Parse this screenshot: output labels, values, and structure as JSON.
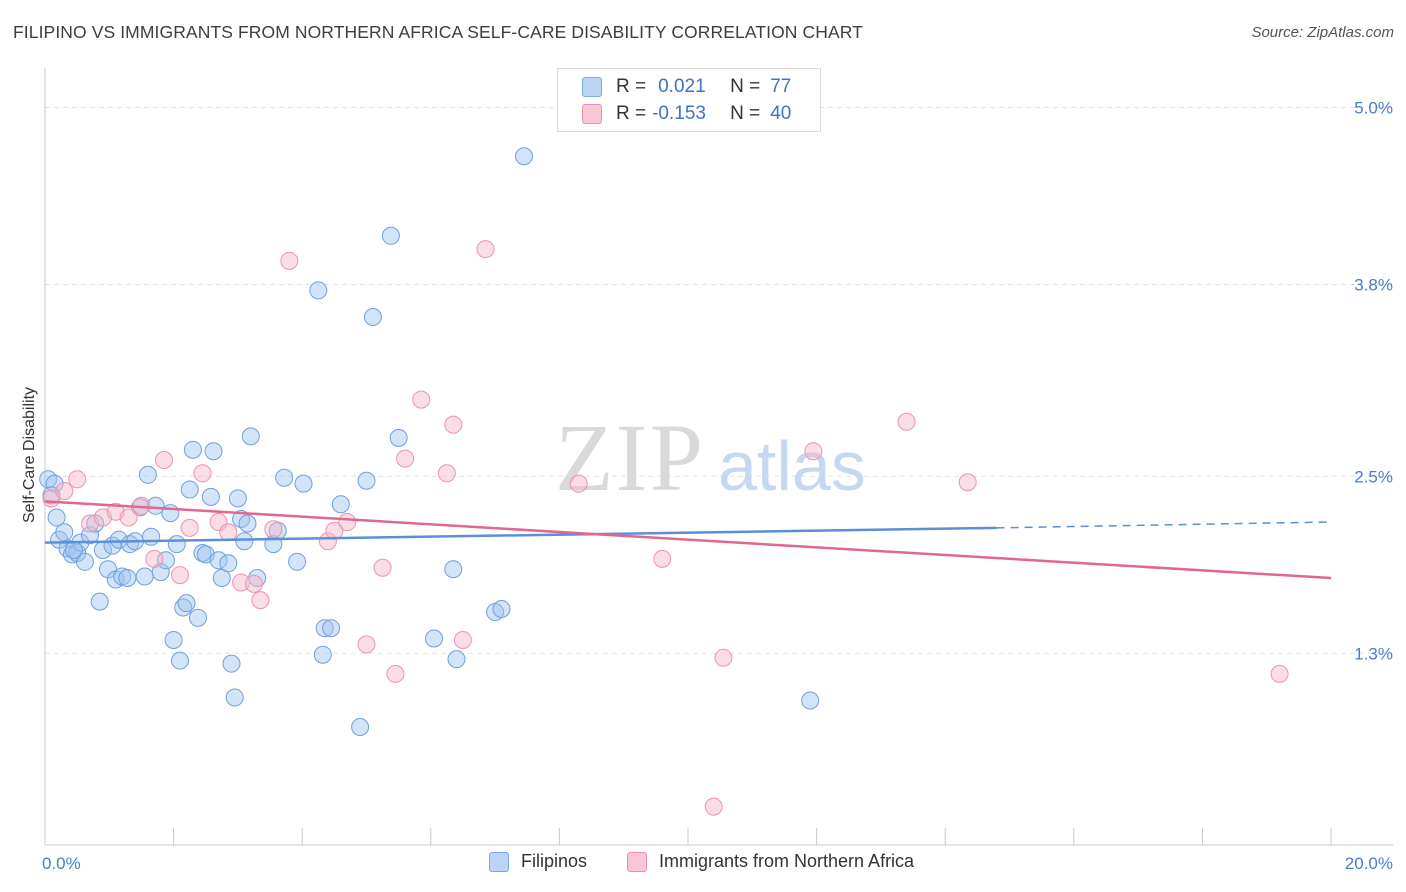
{
  "title": "FILIPINO VS IMMIGRANTS FROM NORTHERN AFRICA SELF-CARE DISABILITY CORRELATION CHART",
  "source": "Source: ZipAtlas.com",
  "legend": {
    "r_label": "R =",
    "n_label": "N =",
    "series": [
      {
        "name": "Filipinos",
        "r": "0.021",
        "n": "77",
        "color": "#7aa8e6",
        "fill": "#bcd3f3"
      },
      {
        "name": "Immigrants from Northern Africa",
        "r": "-0.153",
        "n": "40",
        "color": "#ec8fae",
        "fill": "#f8c7d6"
      }
    ]
  },
  "watermark": {
    "zip": "ZIP",
    "atlas": "atlas"
  },
  "chart_data": {
    "type": "scatter",
    "title": "FILIPINO VS IMMIGRANTS FROM NORTHERN AFRICA SELF-CARE DISABILITY CORRELATION CHART",
    "xlabel": "",
    "ylabel": "Self-Care Disability",
    "xlim": [
      0,
      20
    ],
    "ylim": [
      0,
      5.2
    ],
    "x_tick_labels": [
      "0.0%",
      "20.0%"
    ],
    "y_ticks": [
      {
        "value": 1.3,
        "label": "1.3%"
      },
      {
        "value": 2.5,
        "label": "2.5%"
      },
      {
        "value": 3.8,
        "label": "3.8%"
      },
      {
        "value": 5.0,
        "label": "5.0%"
      }
    ],
    "series": [
      {
        "name": "Filipinos",
        "color": "#5b8fd8",
        "trend": {
          "x0": 0,
          "y0": 2.05,
          "x1": 14.8,
          "y1": 2.15,
          "dashed_to_x": 20,
          "dashed_to_y": 2.19
        },
        "points": [
          [
            0.05,
            2.48
          ],
          [
            0.15,
            2.45
          ],
          [
            0.22,
            2.07
          ],
          [
            0.3,
            2.12
          ],
          [
            0.35,
            2.01
          ],
          [
            0.42,
            1.97
          ],
          [
            0.5,
            1.98
          ],
          [
            0.55,
            2.05
          ],
          [
            0.62,
            1.92
          ],
          [
            0.7,
            2.1
          ],
          [
            0.78,
            2.18
          ],
          [
            0.85,
            1.65
          ],
          [
            0.9,
            2.0
          ],
          [
            0.98,
            1.87
          ],
          [
            1.05,
            2.03
          ],
          [
            1.1,
            1.8
          ],
          [
            1.15,
            2.07
          ],
          [
            1.2,
            1.82
          ],
          [
            1.28,
            1.81
          ],
          [
            1.32,
            2.04
          ],
          [
            1.4,
            2.06
          ],
          [
            1.48,
            2.29
          ],
          [
            1.55,
            1.82
          ],
          [
            1.6,
            2.51
          ],
          [
            1.65,
            2.09
          ],
          [
            1.72,
            2.3
          ],
          [
            1.8,
            1.85
          ],
          [
            1.88,
            1.93
          ],
          [
            1.95,
            2.25
          ],
          [
            2.0,
            1.39
          ],
          [
            2.05,
            2.04
          ],
          [
            2.1,
            1.25
          ],
          [
            2.15,
            1.61
          ],
          [
            2.2,
            1.64
          ],
          [
            2.25,
            2.41
          ],
          [
            2.3,
            2.68
          ],
          [
            2.38,
            1.54
          ],
          [
            2.45,
            1.98
          ],
          [
            2.5,
            1.97
          ],
          [
            2.58,
            2.36
          ],
          [
            2.62,
            2.67
          ],
          [
            2.7,
            1.93
          ],
          [
            2.75,
            1.81
          ],
          [
            2.85,
            1.91
          ],
          [
            2.9,
            1.23
          ],
          [
            2.95,
            1.0
          ],
          [
            3.0,
            2.35
          ],
          [
            3.05,
            2.21
          ],
          [
            3.1,
            2.06
          ],
          [
            3.15,
            2.18
          ],
          [
            3.2,
            2.77
          ],
          [
            3.3,
            1.81
          ],
          [
            3.55,
            2.04
          ],
          [
            3.62,
            2.13
          ],
          [
            3.72,
            2.49
          ],
          [
            3.92,
            1.92
          ],
          [
            4.02,
            2.45
          ],
          [
            4.25,
            3.76
          ],
          [
            4.35,
            1.47
          ],
          [
            4.32,
            1.29
          ],
          [
            4.45,
            1.47
          ],
          [
            4.6,
            2.31
          ],
          [
            4.9,
            0.8
          ],
          [
            5.0,
            2.47
          ],
          [
            5.1,
            3.58
          ],
          [
            5.38,
            4.13
          ],
          [
            5.5,
            2.76
          ],
          [
            6.05,
            1.4
          ],
          [
            6.35,
            1.87
          ],
          [
            6.4,
            1.26
          ],
          [
            7.0,
            1.58
          ],
          [
            7.1,
            1.6
          ],
          [
            7.45,
            4.67
          ],
          [
            11.9,
            0.98
          ],
          [
            0.1,
            2.37
          ],
          [
            0.18,
            2.22
          ],
          [
            0.45,
            2.0
          ]
        ]
      },
      {
        "name": "Immigrants from Northern Africa",
        "color": "#e0678f",
        "trend": {
          "x0": 0,
          "y0": 2.33,
          "x1": 20,
          "y1": 1.81
        },
        "points": [
          [
            0.1,
            2.35
          ],
          [
            0.5,
            2.48
          ],
          [
            0.7,
            2.18
          ],
          [
            0.9,
            2.22
          ],
          [
            1.1,
            2.26
          ],
          [
            1.3,
            2.22
          ],
          [
            1.5,
            2.3
          ],
          [
            1.7,
            1.94
          ],
          [
            1.85,
            2.61
          ],
          [
            2.1,
            1.83
          ],
          [
            2.25,
            2.15
          ],
          [
            2.45,
            2.52
          ],
          [
            2.7,
            2.19
          ],
          [
            2.85,
            2.12
          ],
          [
            3.05,
            1.78
          ],
          [
            3.25,
            1.77
          ],
          [
            3.35,
            1.66
          ],
          [
            3.55,
            2.14
          ],
          [
            3.8,
            3.96
          ],
          [
            4.4,
            2.06
          ],
          [
            4.5,
            2.13
          ],
          [
            4.7,
            2.19
          ],
          [
            5.0,
            1.36
          ],
          [
            5.25,
            1.88
          ],
          [
            5.45,
            1.16
          ],
          [
            5.6,
            2.62
          ],
          [
            5.85,
            3.02
          ],
          [
            6.25,
            2.52
          ],
          [
            6.35,
            2.85
          ],
          [
            6.5,
            1.39
          ],
          [
            6.85,
            4.04
          ],
          [
            8.3,
            2.45
          ],
          [
            9.6,
            1.94
          ],
          [
            10.55,
            1.27
          ],
          [
            10.4,
            0.26
          ],
          [
            11.95,
            2.67
          ],
          [
            13.4,
            2.87
          ],
          [
            14.35,
            2.46
          ],
          [
            19.2,
            1.16
          ],
          [
            0.3,
            2.4
          ]
        ]
      }
    ]
  }
}
